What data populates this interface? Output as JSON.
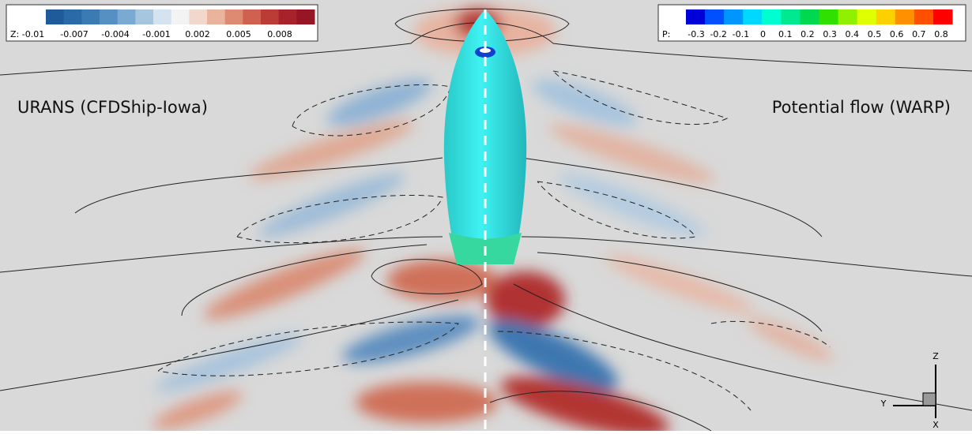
{
  "z_legend": {
    "label": "Z:",
    "ticks": [
      "-0.01",
      "-0.007",
      "-0.004",
      "-0.001",
      "0.002",
      "0.005",
      "0.008"
    ],
    "colors": [
      "#1f5a9a",
      "#2b6aa8",
      "#3c7ab4",
      "#5690c2",
      "#7aa9d1",
      "#a6c6e0",
      "#d4e3ef",
      "#f3f3f3",
      "#f2d8cc",
      "#eab39e",
      "#de8a72",
      "#cf6150",
      "#bb3b36",
      "#a8222b",
      "#961626"
    ]
  },
  "p_legend": {
    "label": "P:",
    "ticks": [
      "-0.3",
      "-0.2",
      "-0.1",
      "0",
      "0.1",
      "0.2",
      "0.3",
      "0.4",
      "0.5",
      "0.6",
      "0.7",
      "0.8"
    ],
    "colors": [
      "#0000d8",
      "#0050ff",
      "#0096ff",
      "#00d8ff",
      "#00ffd0",
      "#00e890",
      "#00d850",
      "#30e000",
      "#90f000",
      "#e0ff00",
      "#ffd000",
      "#ff9000",
      "#ff5000",
      "#ff0000"
    ]
  },
  "left_title": "URANS (CFDShip-Iowa)",
  "right_title": "Potential flow (WARP)",
  "axes": {
    "z": "Z",
    "y": "Y",
    "x": "X"
  }
}
